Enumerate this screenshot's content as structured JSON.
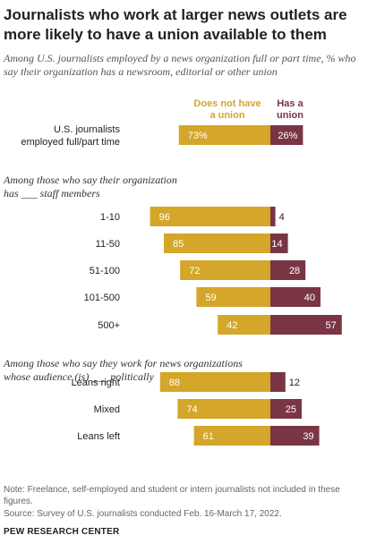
{
  "title": "Journalists who work at larger news outlets are more likely to have a union available to them",
  "subtitle": "Among U.S. journalists employed by a news organization full or part time, % who say their organization has a newsroom, editorial or other union",
  "chart_data": {
    "type": "bar",
    "orientation": "diverging-horizontal",
    "series": [
      {
        "name": "Does not have a union",
        "color": "#d4a62a"
      },
      {
        "name": "Has a union",
        "color": "#7a3545"
      }
    ],
    "groups": [
      {
        "title": "",
        "rows": [
          {
            "label": "U.S. journalists employed full/part time",
            "label_lines": [
              "U.S. journalists",
              "employed full/part time"
            ],
            "values": [
              73,
              26
            ],
            "value_labels": [
              "73%",
              "26%"
            ]
          }
        ]
      },
      {
        "title": "Among those who say their organization has ___ staff members",
        "title_lines": [
          "Among those who say their organization",
          "has ___ staff members"
        ],
        "rows": [
          {
            "label": "1-10",
            "values": [
              96,
              4
            ],
            "value_labels": [
              "96",
              "4"
            ]
          },
          {
            "label": "11-50",
            "values": [
              85,
              14
            ],
            "value_labels": [
              "85",
              "14"
            ]
          },
          {
            "label": "51-100",
            "values": [
              72,
              28
            ],
            "value_labels": [
              "72",
              "28"
            ]
          },
          {
            "label": "101-500",
            "values": [
              59,
              40
            ],
            "value_labels": [
              "59",
              "40"
            ]
          },
          {
            "label": "500+",
            "values": [
              42,
              57
            ],
            "value_labels": [
              "42",
              "57"
            ]
          }
        ]
      },
      {
        "title": "Among those who say they work for news organizations whose audience (is) ___ politically",
        "title_lines": [
          "Among those who say they work for news organizations",
          "whose audience (is) ___ politically"
        ],
        "rows": [
          {
            "label": "Leans right",
            "values": [
              88,
              12
            ],
            "value_labels": [
              "88",
              "12"
            ]
          },
          {
            "label": "Mixed",
            "values": [
              74,
              25
            ],
            "value_labels": [
              "74",
              "25"
            ]
          },
          {
            "label": "Leans left",
            "values": [
              61,
              39
            ],
            "value_labels": [
              "61",
              "39"
            ]
          }
        ]
      }
    ]
  },
  "note": "Note: Freelance, self-employed and student or intern journalists not included in these figures.",
  "source": "Source: Survey of U.S. journalists conducted Feb. 16-March 17, 2022.",
  "footer": "PEW RESEARCH CENTER"
}
